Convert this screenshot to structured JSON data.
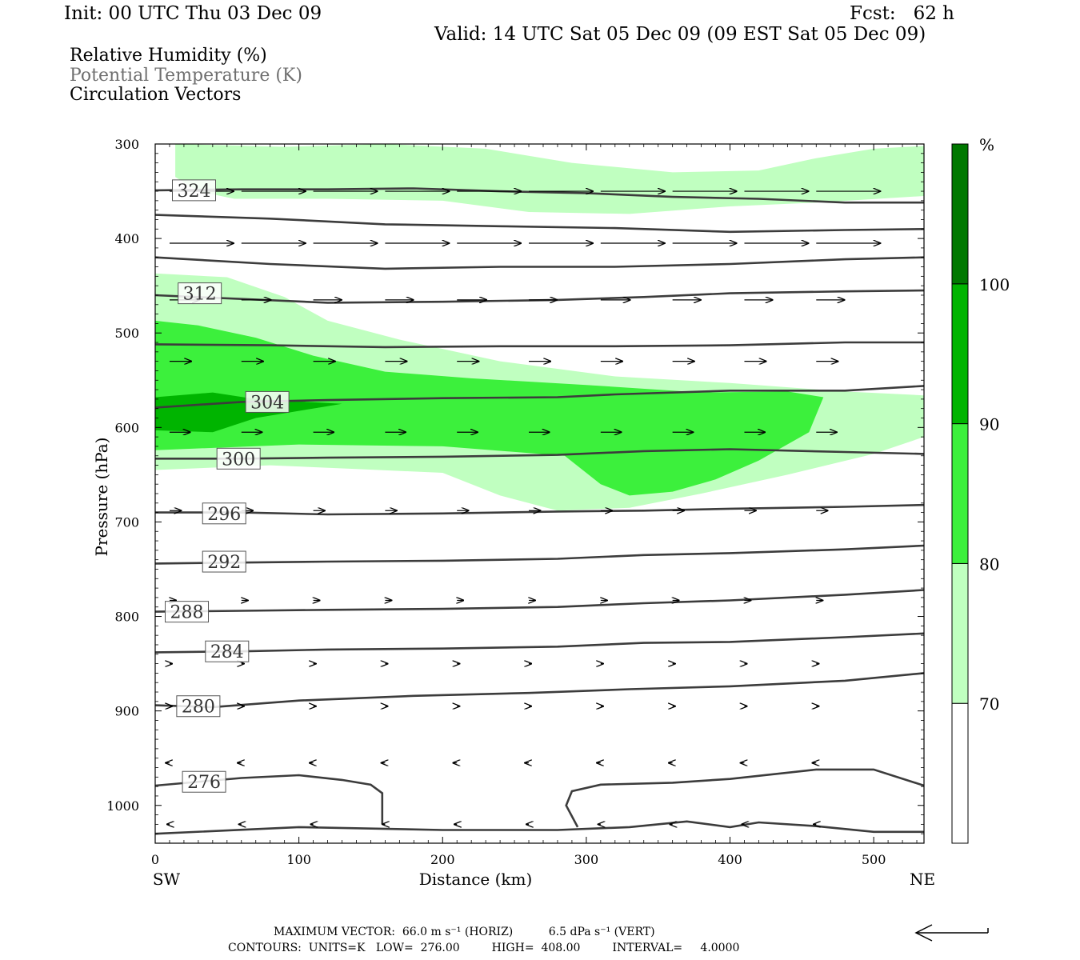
{
  "header": {
    "init": "Init: 00 UTC Thu 03 Dec 09",
    "fcst": "Fcst:   62 h",
    "valid": "Valid: 14 UTC Sat 05 Dec 09 (09 EST Sat 05 Dec 09)"
  },
  "legend_titles": {
    "rh": "Relative Humidity (%)",
    "theta": "Potential Temperature (K)",
    "vectors": "Circulation Vectors"
  },
  "footer": {
    "max_vector": "MAXIMUM VECTOR:  66.0 m s⁻¹ (HORIZ)          6.5 dPa s⁻¹ (VERT)",
    "contours": "CONTOURS:  UNITS=K   LOW=  276.00         HIGH=  408.00         INTERVAL=     4.0000"
  },
  "colors": {
    "rh_70_80": "#c0ffc0",
    "rh_80_90": "#3cf03c",
    "rh_90_100": "#00b400",
    "rh_100": "#007800",
    "contour": "#3c3c3c",
    "vector": "#000000"
  },
  "chart_data": {
    "type": "contour",
    "xlabel": "Distance (km)",
    "ylabel": "Pressure (hPa)",
    "xlim": [
      0,
      535
    ],
    "ylim": [
      1040,
      300
    ],
    "x_ticks": [
      "0",
      "100",
      "200",
      "300",
      "400",
      "500"
    ],
    "y_ticks": [
      "300",
      "400",
      "500",
      "600",
      "700",
      "800",
      "900",
      "1000"
    ],
    "x_end_labels": {
      "left": "SW",
      "right": "NE"
    },
    "colorbar": {
      "unit": "%",
      "levels": [
        "70",
        "80",
        "90",
        "100"
      ],
      "colors": [
        "#ffffff",
        "#c0ffc0",
        "#3cf03c",
        "#00b400",
        "#007800"
      ]
    },
    "theta_contours": [
      {
        "label": "324",
        "points": [
          [
            0,
            349
          ],
          [
            60,
            348
          ],
          [
            120,
            348
          ],
          [
            180,
            347
          ],
          [
            240,
            350
          ],
          [
            300,
            352
          ],
          [
            360,
            356
          ],
          [
            420,
            358
          ],
          [
            480,
            362
          ],
          [
            535,
            362
          ]
        ],
        "label_at": [
          27,
          349
        ]
      },
      {
        "label": "",
        "points": [
          [
            0,
            375
          ],
          [
            80,
            379
          ],
          [
            160,
            385
          ],
          [
            240,
            387
          ],
          [
            320,
            389
          ],
          [
            400,
            393
          ],
          [
            480,
            391
          ],
          [
            535,
            390
          ]
        ]
      },
      {
        "label": "",
        "points": [
          [
            0,
            420
          ],
          [
            80,
            427
          ],
          [
            160,
            432
          ],
          [
            240,
            430
          ],
          [
            320,
            430
          ],
          [
            400,
            427
          ],
          [
            480,
            422
          ],
          [
            535,
            420
          ]
        ]
      },
      {
        "label": "312",
        "points": [
          [
            0,
            460
          ],
          [
            60,
            464
          ],
          [
            120,
            468
          ],
          [
            200,
            467
          ],
          [
            280,
            465
          ],
          [
            340,
            462
          ],
          [
            400,
            458
          ],
          [
            480,
            456
          ],
          [
            535,
            455
          ]
        ],
        "label_at": [
          31,
          458
        ]
      },
      {
        "label": "",
        "points": [
          [
            0,
            512
          ],
          [
            80,
            513
          ],
          [
            160,
            515
          ],
          [
            240,
            514
          ],
          [
            320,
            514
          ],
          [
            400,
            513
          ],
          [
            480,
            510
          ],
          [
            535,
            510
          ]
        ],
        "label_at": [
          64,
          513
        ]
      },
      {
        "label": "304",
        "points": [
          [
            0,
            579
          ],
          [
            60,
            573
          ],
          [
            120,
            571
          ],
          [
            200,
            569
          ],
          [
            280,
            568
          ],
          [
            320,
            565
          ],
          [
            400,
            561
          ],
          [
            480,
            561
          ],
          [
            535,
            556
          ]
        ],
        "label_at": [
          78,
          573
        ]
      },
      {
        "label": "300",
        "points": [
          [
            0,
            633
          ],
          [
            60,
            633
          ],
          [
            120,
            632
          ],
          [
            200,
            631
          ],
          [
            280,
            629
          ],
          [
            340,
            625
          ],
          [
            400,
            623
          ],
          [
            480,
            626
          ],
          [
            535,
            628
          ]
        ],
        "label_at": [
          58,
          633
        ]
      },
      {
        "label": "296",
        "points": [
          [
            0,
            690
          ],
          [
            60,
            690
          ],
          [
            120,
            692
          ],
          [
            200,
            691
          ],
          [
            280,
            689
          ],
          [
            340,
            688
          ],
          [
            400,
            686
          ],
          [
            480,
            684
          ],
          [
            535,
            682
          ]
        ],
        "label_at": [
          48,
          691
        ]
      },
      {
        "label": "292",
        "points": [
          [
            0,
            744
          ],
          [
            60,
            743
          ],
          [
            120,
            742
          ],
          [
            200,
            741
          ],
          [
            280,
            739
          ],
          [
            340,
            735
          ],
          [
            400,
            733
          ],
          [
            480,
            729
          ],
          [
            535,
            725
          ]
        ],
        "label_at": [
          48,
          742
        ]
      },
      {
        "label": "288",
        "points": [
          [
            0,
            795
          ],
          [
            60,
            794
          ],
          [
            120,
            793
          ],
          [
            200,
            792
          ],
          [
            280,
            790
          ],
          [
            340,
            786
          ],
          [
            400,
            783
          ],
          [
            480,
            777
          ],
          [
            535,
            772
          ]
        ],
        "label_at": [
          22,
          795
        ]
      },
      {
        "label": "284",
        "points": [
          [
            0,
            838
          ],
          [
            60,
            837
          ],
          [
            120,
            835
          ],
          [
            200,
            834
          ],
          [
            280,
            832
          ],
          [
            340,
            828
          ],
          [
            400,
            827
          ],
          [
            480,
            822
          ],
          [
            535,
            818
          ]
        ],
        "label_at": [
          50,
          837
        ]
      },
      {
        "label": "280",
        "points": [
          [
            0,
            894
          ],
          [
            40,
            896
          ],
          [
            100,
            889
          ],
          [
            180,
            884
          ],
          [
            260,
            881
          ],
          [
            330,
            877
          ],
          [
            400,
            874
          ],
          [
            480,
            868
          ],
          [
            535,
            860
          ]
        ],
        "label_at": [
          30,
          895
        ]
      },
      {
        "label": "276",
        "points": [
          [
            0,
            979
          ],
          [
            60,
            971
          ],
          [
            100,
            968
          ],
          [
            130,
            973
          ],
          [
            150,
            978
          ],
          [
            158,
            987
          ],
          [
            158,
            1020
          ]
        ],
        "label_at": [
          34,
          975
        ]
      },
      {
        "label": "",
        "points": [
          [
            294,
            1023
          ],
          [
            286,
            1000
          ],
          [
            290,
            985
          ],
          [
            310,
            978
          ],
          [
            360,
            976
          ],
          [
            400,
            972
          ],
          [
            460,
            962
          ],
          [
            500,
            962
          ],
          [
            535,
            979
          ]
        ]
      },
      {
        "label": "",
        "points": [
          [
            0,
            1030
          ],
          [
            100,
            1023
          ],
          [
            200,
            1026
          ],
          [
            280,
            1026
          ],
          [
            330,
            1023
          ],
          [
            370,
            1017
          ],
          [
            400,
            1023
          ],
          [
            420,
            1018
          ],
          [
            460,
            1022
          ],
          [
            500,
            1028
          ],
          [
            535,
            1028
          ]
        ]
      }
    ],
    "rh_regions": [
      {
        "level": "70-80",
        "points": [
          [
            14,
            300
          ],
          [
            90,
            303
          ],
          [
            160,
            300
          ],
          [
            230,
            305
          ],
          [
            290,
            320
          ],
          [
            360,
            330
          ],
          [
            420,
            328
          ],
          [
            460,
            315
          ],
          [
            500,
            305
          ],
          [
            535,
            302
          ],
          [
            535,
            355
          ],
          [
            460,
            362
          ],
          [
            400,
            366
          ],
          [
            330,
            374
          ],
          [
            260,
            372
          ],
          [
            200,
            360
          ],
          [
            120,
            358
          ],
          [
            55,
            358
          ],
          [
            30,
            350
          ],
          [
            14,
            335
          ]
        ]
      },
      {
        "label": "",
        "level": "70-80",
        "points": [
          [
            0,
            437
          ],
          [
            50,
            441
          ],
          [
            90,
            462
          ],
          [
            120,
            487
          ],
          [
            170,
            507
          ],
          [
            240,
            530
          ],
          [
            320,
            546
          ],
          [
            400,
            553
          ],
          [
            480,
            562
          ],
          [
            535,
            566
          ],
          [
            535,
            610
          ],
          [
            500,
            628
          ],
          [
            440,
            650
          ],
          [
            380,
            670
          ],
          [
            330,
            685
          ],
          [
            280,
            688
          ],
          [
            240,
            672
          ],
          [
            200,
            648
          ],
          [
            140,
            644
          ],
          [
            80,
            640
          ],
          [
            0,
            645
          ]
        ]
      },
      {
        "level": "80-90",
        "points": [
          [
            0,
            487
          ],
          [
            30,
            492
          ],
          [
            70,
            505
          ],
          [
            110,
            524
          ],
          [
            160,
            541
          ],
          [
            220,
            548
          ],
          [
            300,
            555
          ],
          [
            380,
            563
          ],
          [
            440,
            562
          ],
          [
            465,
            568
          ],
          [
            455,
            605
          ],
          [
            420,
            635
          ],
          [
            390,
            655
          ],
          [
            360,
            668
          ],
          [
            330,
            672
          ],
          [
            310,
            660
          ],
          [
            285,
            630
          ],
          [
            200,
            620
          ],
          [
            100,
            618
          ],
          [
            0,
            624
          ]
        ]
      },
      {
        "level": "90-100",
        "points": [
          [
            0,
            568
          ],
          [
            40,
            563
          ],
          [
            70,
            570
          ],
          [
            130,
            575
          ],
          [
            70,
            590
          ],
          [
            40,
            605
          ],
          [
            0,
            603
          ]
        ]
      }
    ],
    "vectors": [
      {
        "p": 350,
        "u": [
          50,
          50,
          50,
          50,
          50,
          50,
          50,
          50,
          50,
          50
        ]
      },
      {
        "p": 405,
        "u": [
          50,
          50,
          50,
          50,
          50,
          50,
          50,
          50,
          50,
          50
        ]
      },
      {
        "p": 465,
        "u": [
          23,
          23,
          22,
          22,
          23,
          22,
          23,
          22,
          22,
          22
        ]
      },
      {
        "p": 530,
        "u": [
          17,
          17,
          17,
          17,
          17,
          17,
          17,
          17,
          17,
          17
        ]
      },
      {
        "p": 605,
        "u": [
          16,
          16,
          16,
          16,
          16,
          16,
          16,
          16,
          16,
          16
        ]
      },
      {
        "p": 688,
        "u": [
          9,
          9,
          9,
          9,
          9,
          9,
          9,
          9,
          9,
          9
        ]
      },
      {
        "p": 783,
        "u": [
          5,
          5,
          5,
          5,
          5,
          5,
          5,
          5,
          5,
          5
        ]
      },
      {
        "p": 850,
        "u": [
          2,
          2,
          2,
          2,
          2,
          2,
          2,
          2,
          2,
          2
        ]
      },
      {
        "p": 895,
        "u": [
          2,
          2,
          2,
          2,
          2,
          2,
          2,
          2,
          2,
          2
        ]
      },
      {
        "p": 955,
        "u": [
          -3,
          -3,
          -3,
          -3,
          -3,
          -3,
          -3,
          -3,
          -3,
          -3
        ]
      },
      {
        "p": 1020,
        "u": [
          -2,
          -2,
          -2,
          -2,
          -2,
          -2,
          -2,
          -2,
          -2,
          -2
        ]
      }
    ]
  }
}
